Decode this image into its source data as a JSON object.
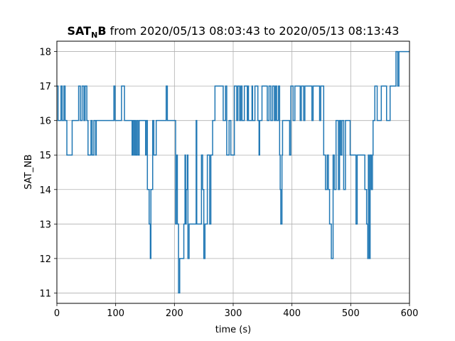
{
  "chart_data": {
    "type": "line",
    "title": "SAT_NB from 2020/05/13 08:03:43 to 2020/05/13 08:13:43",
    "title_parts": {
      "main": "SAT",
      "sub": "N",
      "after": "B",
      "rest": " from 2020/05/13 08:03:43 to 2020/05/13 08:13:43"
    },
    "xlabel": "time (s)",
    "ylabel": "SAT_NB",
    "xlim": [
      0,
      600
    ],
    "ylim": [
      10.7,
      18.3
    ],
    "xticks": [
      0,
      100,
      200,
      300,
      400,
      500,
      600
    ],
    "yticks": [
      11,
      12,
      13,
      14,
      15,
      16,
      17,
      18
    ],
    "grid": true,
    "step": true,
    "color": "#1f77b4",
    "series": [
      {
        "points": [
          [
            0,
            17
          ],
          [
            2,
            16
          ],
          [
            7,
            17
          ],
          [
            9,
            16
          ],
          [
            12,
            17
          ],
          [
            14,
            16
          ],
          [
            17,
            15
          ],
          [
            26,
            16
          ],
          [
            37,
            17
          ],
          [
            40,
            16
          ],
          [
            43,
            17
          ],
          [
            46,
            16
          ],
          [
            48,
            17
          ],
          [
            51,
            16
          ],
          [
            53,
            15
          ],
          [
            58,
            16
          ],
          [
            60,
            15
          ],
          [
            63,
            16
          ],
          [
            66,
            15
          ],
          [
            67,
            16
          ],
          [
            97,
            17
          ],
          [
            99,
            16
          ],
          [
            110,
            17
          ],
          [
            115,
            16
          ],
          [
            128,
            15
          ],
          [
            129,
            16
          ],
          [
            131,
            15
          ],
          [
            132,
            16
          ],
          [
            134,
            15
          ],
          [
            136,
            16
          ],
          [
            138,
            15
          ],
          [
            140,
            16
          ],
          [
            151,
            15
          ],
          [
            152,
            16
          ],
          [
            154,
            14
          ],
          [
            157,
            13
          ],
          [
            159,
            12
          ],
          [
            160,
            14
          ],
          [
            163,
            16
          ],
          [
            165,
            15
          ],
          [
            169,
            16
          ],
          [
            186,
            17
          ],
          [
            188,
            16
          ],
          [
            202,
            13
          ],
          [
            203,
            14
          ],
          [
            204,
            15
          ],
          [
            205,
            13
          ],
          [
            207,
            11
          ],
          [
            209,
            12
          ],
          [
            216,
            13
          ],
          [
            218,
            15
          ],
          [
            219,
            13
          ],
          [
            220,
            14
          ],
          [
            222,
            15
          ],
          [
            223,
            12
          ],
          [
            225,
            13
          ],
          [
            237,
            16
          ],
          [
            238,
            13
          ],
          [
            244,
            13
          ],
          [
            246,
            15
          ],
          [
            248,
            14
          ],
          [
            250,
            12
          ],
          [
            252,
            13
          ],
          [
            256,
            15
          ],
          [
            260,
            13
          ],
          [
            262,
            15
          ],
          [
            265,
            16
          ],
          [
            269,
            17
          ],
          [
            283,
            16
          ],
          [
            287,
            17
          ],
          [
            289,
            15
          ],
          [
            293,
            16
          ],
          [
            296,
            15
          ],
          [
            302,
            17
          ],
          [
            306,
            16
          ],
          [
            308,
            17
          ],
          [
            311,
            16
          ],
          [
            313,
            17
          ],
          [
            315,
            16
          ],
          [
            319,
            17
          ],
          [
            324,
            16
          ],
          [
            325,
            17
          ],
          [
            326,
            16
          ],
          [
            332,
            17
          ],
          [
            333,
            16
          ],
          [
            337,
            17
          ],
          [
            342,
            16
          ],
          [
            344,
            15
          ],
          [
            345,
            16
          ],
          [
            349,
            17
          ],
          [
            358,
            16
          ],
          [
            361,
            17
          ],
          [
            364,
            16
          ],
          [
            367,
            17
          ],
          [
            370,
            16
          ],
          [
            372,
            17
          ],
          [
            374,
            16
          ],
          [
            377,
            17
          ],
          [
            379,
            15
          ],
          [
            380,
            14
          ],
          [
            381,
            13
          ],
          [
            383,
            15
          ],
          [
            384,
            16
          ],
          [
            396,
            15
          ],
          [
            398,
            17
          ],
          [
            402,
            16
          ],
          [
            405,
            17
          ],
          [
            414,
            16
          ],
          [
            416,
            17
          ],
          [
            420,
            16
          ],
          [
            422,
            17
          ],
          [
            434,
            16
          ],
          [
            436,
            17
          ],
          [
            447,
            16
          ],
          [
            449,
            17
          ],
          [
            454,
            15
          ],
          [
            457,
            14
          ],
          [
            460,
            15
          ],
          [
            462,
            14
          ],
          [
            464,
            13
          ],
          [
            467,
            12
          ],
          [
            470,
            15
          ],
          [
            472,
            14
          ],
          [
            475,
            16
          ],
          [
            479,
            14
          ],
          [
            481,
            16
          ],
          [
            483,
            15
          ],
          [
            485,
            16
          ],
          [
            488,
            14
          ],
          [
            491,
            16
          ],
          [
            499,
            15
          ],
          [
            509,
            13
          ],
          [
            511,
            15
          ],
          [
            524,
            14
          ],
          [
            527,
            13
          ],
          [
            529,
            12
          ],
          [
            530,
            15
          ],
          [
            531,
            14
          ],
          [
            532,
            12
          ],
          [
            533,
            15
          ],
          [
            535,
            14
          ],
          [
            537,
            15
          ],
          [
            538,
            16
          ],
          [
            541,
            17
          ],
          [
            545,
            16
          ],
          [
            552,
            17
          ],
          [
            561,
            16
          ],
          [
            567,
            17
          ],
          [
            577,
            18
          ],
          [
            580,
            17
          ],
          [
            582,
            18
          ],
          [
            590,
            18
          ],
          [
            600,
            18
          ]
        ]
      }
    ]
  }
}
